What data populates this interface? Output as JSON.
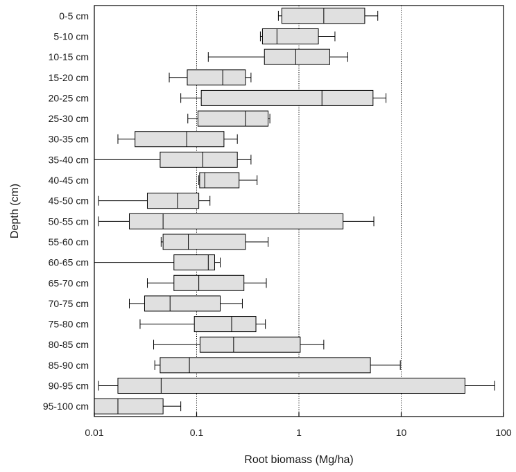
{
  "chart_data": {
    "type": "box",
    "orientation": "horizontal",
    "x_scale": "log",
    "xlim": [
      0.01,
      100
    ],
    "xlabel": "Root biomass (Mg/ha)",
    "ylabel": "Depth (cm)",
    "x_ticks": [
      0.01,
      0.1,
      1,
      10,
      100
    ],
    "x_tick_labels": [
      "0.01",
      "0.1",
      "1",
      "10",
      "100"
    ],
    "grid": "vertical dotted at major ticks",
    "box_fill": "#e0e0e0",
    "categories": [
      "0-5 cm",
      "5-10 cm",
      "10-15 cm",
      "15-20 cm",
      "20-25 cm",
      "25-30 cm",
      "30-35 cm",
      "35-40 cm",
      "40-45 cm",
      "45-50 cm",
      "50-55 cm",
      "55-60 cm",
      "60-65 cm",
      "65-70 cm",
      "70-75 cm",
      "75-80 cm",
      "80-85 cm",
      "85-90 cm",
      "90-95 cm",
      "95-100 cm"
    ],
    "boxes": [
      {
        "min": 0.63,
        "q1": 0.68,
        "median": 1.75,
        "q3": 4.4,
        "max": 5.9
      },
      {
        "min": 0.42,
        "q1": 0.44,
        "median": 0.61,
        "q3": 1.55,
        "max": 2.25
      },
      {
        "min": 0.13,
        "q1": 0.46,
        "median": 0.93,
        "q3": 2.0,
        "max": 3.0
      },
      {
        "min": 0.054,
        "q1": 0.081,
        "median": 0.18,
        "q3": 0.3,
        "max": 0.34
      },
      {
        "min": 0.07,
        "q1": 0.111,
        "median": 1.68,
        "q3": 5.3,
        "max": 7.1
      },
      {
        "min": 0.082,
        "q1": 0.103,
        "median": 0.3,
        "q3": 0.5,
        "max": 0.52
      },
      {
        "min": 0.017,
        "q1": 0.025,
        "median": 0.08,
        "q3": 0.185,
        "max": 0.25
      },
      {
        "min": 0.01,
        "q1": 0.044,
        "median": 0.115,
        "q3": 0.25,
        "max": 0.34
      },
      {
        "min": 0.105,
        "q1": 0.107,
        "median": 0.12,
        "q3": 0.26,
        "max": 0.39
      },
      {
        "min": 0.011,
        "q1": 0.033,
        "median": 0.065,
        "q3": 0.105,
        "max": 0.135
      },
      {
        "min": 0.011,
        "q1": 0.022,
        "median": 0.047,
        "q3": 2.7,
        "max": 5.4
      },
      {
        "min": 0.045,
        "q1": 0.047,
        "median": 0.083,
        "q3": 0.3,
        "max": 0.5
      },
      {
        "min": 0.01,
        "q1": 0.06,
        "median": 0.13,
        "q3": 0.15,
        "max": 0.17
      },
      {
        "min": 0.033,
        "q1": 0.06,
        "median": 0.105,
        "q3": 0.29,
        "max": 0.48
      },
      {
        "min": 0.022,
        "q1": 0.031,
        "median": 0.055,
        "q3": 0.17,
        "max": 0.28
      },
      {
        "min": 0.028,
        "q1": 0.095,
        "median": 0.22,
        "q3": 0.38,
        "max": 0.47
      },
      {
        "min": 0.038,
        "q1": 0.108,
        "median": 0.23,
        "q3": 1.03,
        "max": 1.75
      },
      {
        "min": 0.039,
        "q1": 0.044,
        "median": 0.085,
        "q3": 5.0,
        "max": 9.8
      },
      {
        "min": 0.011,
        "q1": 0.017,
        "median": 0.045,
        "q3": 42,
        "max": 82
      },
      {
        "min": 0.01,
        "q1": 0.01,
        "median": 0.017,
        "q3": 0.047,
        "max": 0.07
      }
    ]
  }
}
